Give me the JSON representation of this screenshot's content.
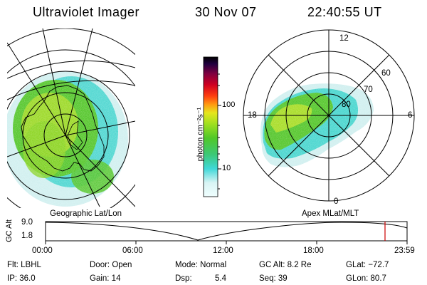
{
  "header": {
    "title": "Ultraviolet Imager",
    "date": "30 Nov 07",
    "time": "22:40:55 UT"
  },
  "left_panel": {
    "caption": "Geographic Lat/Lon"
  },
  "right_panel": {
    "caption": "Apex MLat/MLT",
    "mlt_labels": {
      "top": "12",
      "left": "18",
      "right": "6",
      "bottom": "0"
    },
    "lat_labels": [
      "60",
      "70",
      "80"
    ]
  },
  "colorbar": {
    "label": "photon cm⁻²s⁻¹",
    "ticks": [
      "100",
      "10"
    ]
  },
  "orbit_plot": {
    "ylabel": "GC Alt",
    "yticks": [
      "9.0",
      "1.8"
    ],
    "xticks": [
      "00:00",
      "06:00",
      "12:00",
      "18:00",
      "23:59"
    ],
    "marker_color": "#cc0000"
  },
  "status": {
    "row1": {
      "flt": "Flt: LBHL",
      "door": "Door: Open",
      "mode": "Mode: Normal",
      "gcalt": "GC Alt: 8.2 Re",
      "glat": "GLat: −72.7"
    },
    "row2": {
      "ip": "IP: 36.0",
      "gain": "Gain: 14",
      "dsp_label": "Dsp:",
      "dsp_value": "5.4",
      "seq": "Seq: 39",
      "glon": "GLon: 80.7"
    }
  },
  "colors": {
    "aurora_green": "#5ac832",
    "aurora_yellow": "#c8e628",
    "aurora_cyan": "#3cd2d2",
    "aurora_pale": "#d2f0f0"
  }
}
